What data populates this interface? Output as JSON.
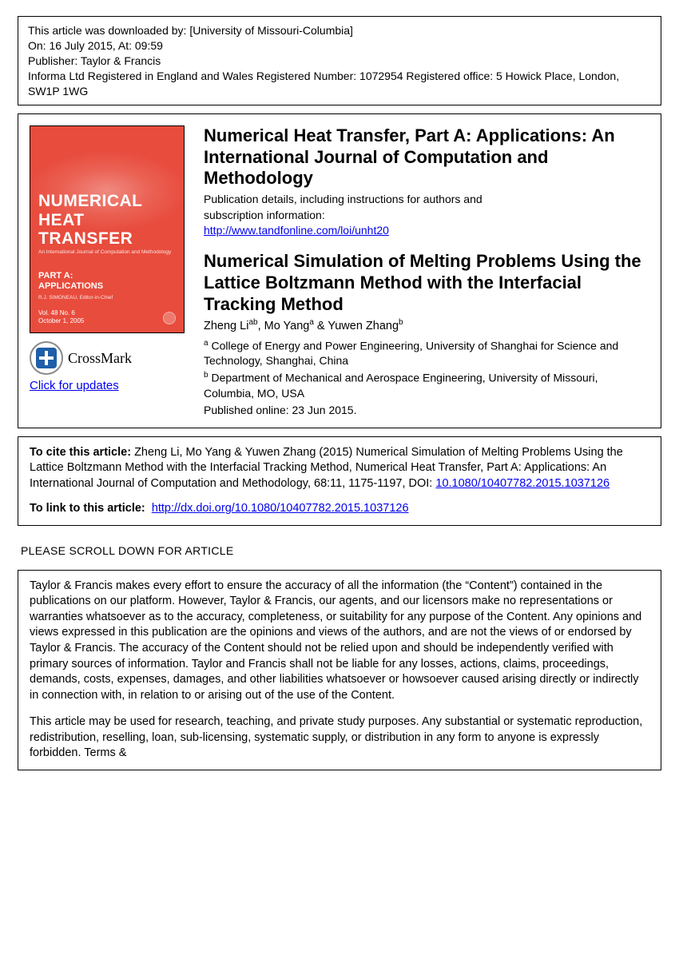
{
  "download": {
    "line1_prefix": "This article was downloaded by: ",
    "institution": "[University of Missouri-Columbia]",
    "on_prefix": "On: ",
    "on_date": "16 July 2015, At: 09:59",
    "publisher_prefix": "Publisher: ",
    "publisher": "Taylor & Francis",
    "registered": "Informa Ltd Registered in England and Wales Registered Number: 1072954 Registered office: 5 Howick Place, London, SW1P 1WG"
  },
  "cover": {
    "title": "NUMERICAL HEAT TRANSFER",
    "subtitle": "An International Journal of Computation and Methodology",
    "part": "PART A: APPLICATIONS",
    "editor": "R.J. SIMONEAU, Editor-in-Chief",
    "vol": "Vol. 48   No. 6",
    "date": "October 1, 2005"
  },
  "crossmark": {
    "label": "CrossMark",
    "updates": "Click for updates"
  },
  "journal": {
    "title": "Numerical Heat Transfer, Part A: Applications: An International Journal of Computation and Methodology",
    "pub_line1": "Publication details, including instructions for authors and",
    "pub_line2": "subscription information:",
    "url": "http://www.tandfonline.com/loi/unht20"
  },
  "article": {
    "title": "Numerical Simulation of Melting Problems Using the Lattice Boltzmann Method with the Interfacial Tracking Method",
    "authors_html": "Zheng Li<sup>ab</sup>, Mo Yang<sup>a</sup> & Yuwen Zhang<sup>b</sup>",
    "affil_a": "<sup>a</sup> College of Energy and Power Engineering, University of Shanghai for Science and Technology, Shanghai, China",
    "affil_b": "<sup>b</sup> Department of Mechanical and Aerospace Engineering, University of Missouri, Columbia, MO, USA",
    "published": "Published online: 23 Jun 2015."
  },
  "cite": {
    "label": "To cite this article:",
    "text": " Zheng Li, Mo Yang & Yuwen Zhang (2015) Numerical Simulation of Melting Problems Using the Lattice Boltzmann Method with the Interfacial Tracking Method, Numerical Heat Transfer, Part A: Applications: An International Journal of Computation and Methodology, 68:11, 1175-1197, DOI: ",
    "doi": "10.1080/10407782.2015.1037126",
    "link_label": "To link to this article:",
    "link_url": "http://dx.doi.org/10.1080/10407782.2015.1037126"
  },
  "scroll": "PLEASE SCROLL DOWN FOR ARTICLE",
  "disclaimer": {
    "p1": "Taylor & Francis makes every effort to ensure the accuracy of all the information (the “Content”) contained in the publications on our platform. However, Taylor & Francis, our agents, and our licensors make no representations or warranties whatsoever as to the accuracy, completeness, or suitability for any purpose of the Content. Any opinions and views expressed in this publication are the opinions and views of the authors, and are not the views of or endorsed by Taylor & Francis. The accuracy of the Content should not be relied upon and should be independently verified with primary sources of information. Taylor and Francis shall not be liable for any losses, actions, claims, proceedings, demands, costs, expenses, damages, and other liabilities whatsoever or howsoever caused arising directly or indirectly in connection with, in relation to or arising out of the use of the Content.",
    "p2": "This article may be used for research, teaching, and private study purposes. Any substantial or systematic reproduction, redistribution, reselling, loan, sub-licensing, systematic supply, or distribution in any form to anyone is expressly forbidden. Terms &"
  },
  "colors": {
    "cover_bg": "#e84c3d",
    "link": "#0000ee",
    "border": "#000000",
    "background": "#ffffff"
  }
}
